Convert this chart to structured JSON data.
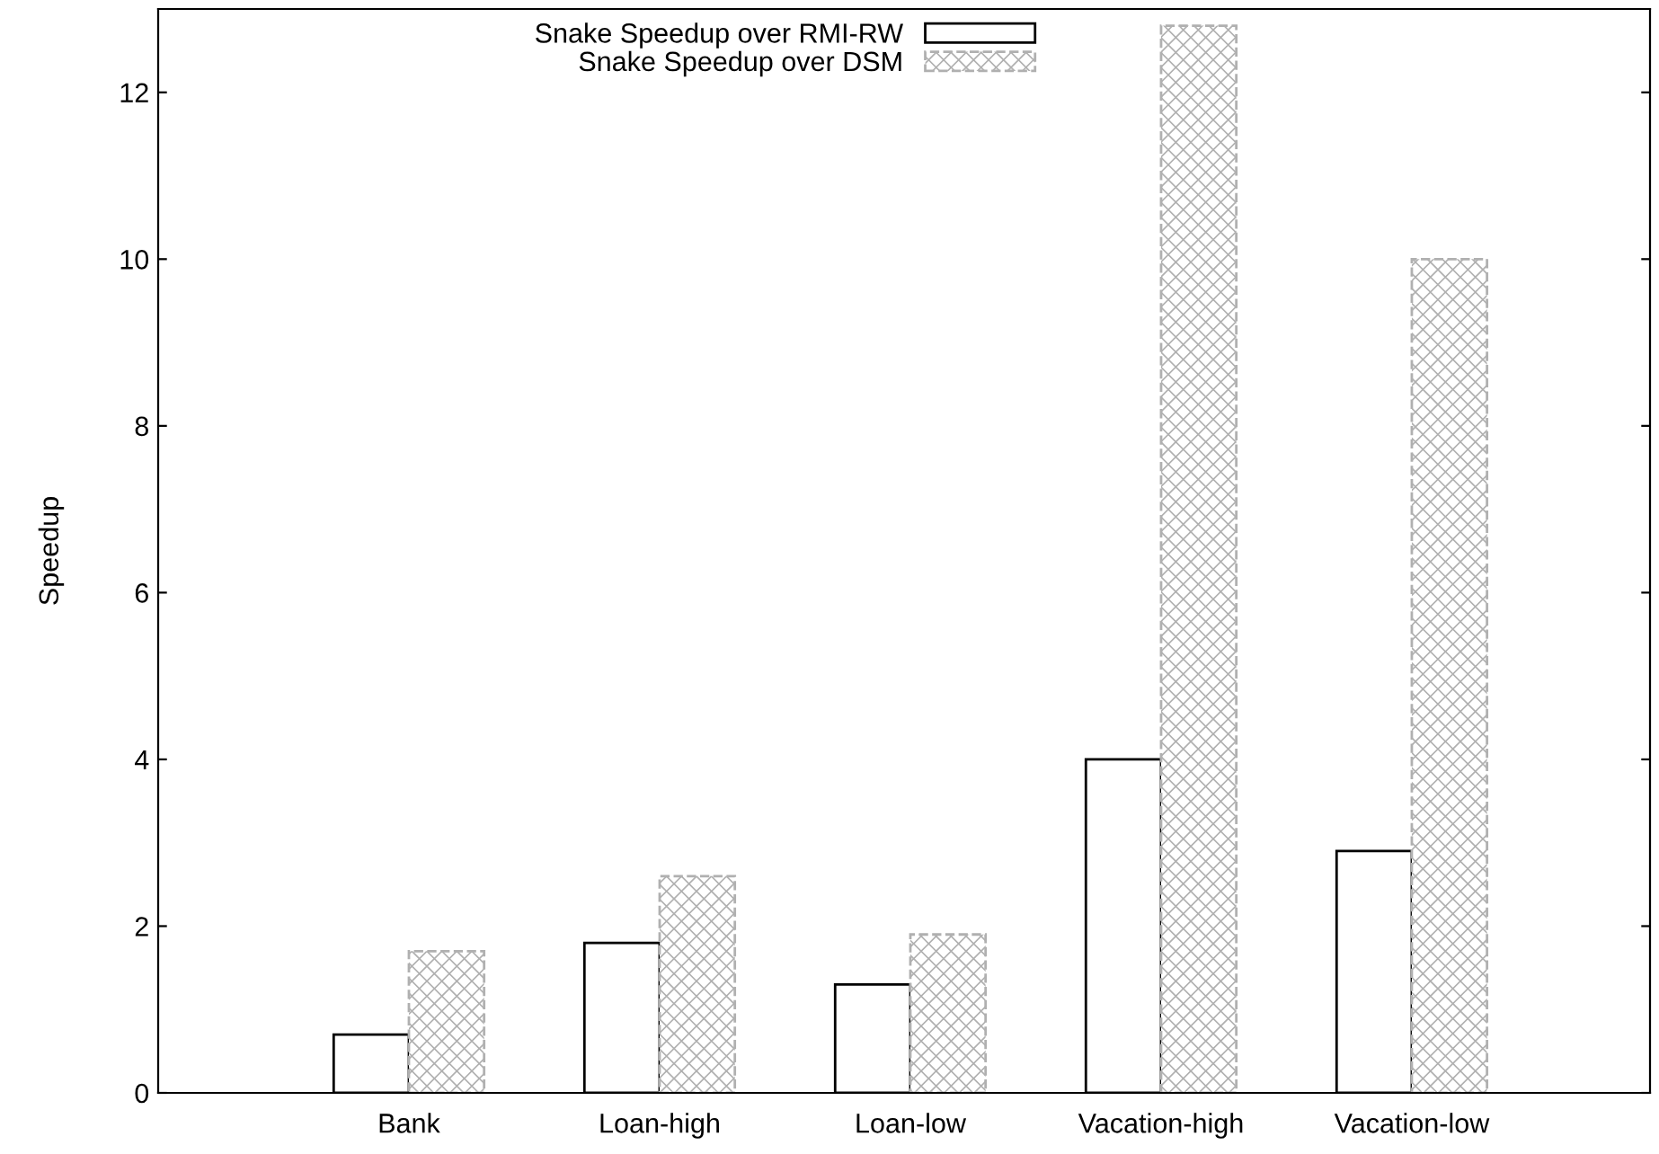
{
  "chart_data": {
    "type": "bar",
    "ylabel": "Speedup",
    "categories": [
      "Bank",
      "Loan-high",
      "Loan-low",
      "Vacation-high",
      "Vacation-low"
    ],
    "series": [
      {
        "name": "Snake Speedup over RMI-RW",
        "color": "#ffffff",
        "values": [
          0.7,
          1.8,
          1.3,
          4.0,
          2.9
        ]
      },
      {
        "name": "Snake Speedup over DSM",
        "color": "#b0b0b0",
        "values": [
          1.7,
          2.6,
          1.9,
          12.8,
          10.0
        ]
      }
    ],
    "ylim": [
      0,
      13
    ],
    "yticks": [
      0,
      2,
      4,
      6,
      8,
      10,
      12
    ],
    "grid": false,
    "legend": "top"
  }
}
